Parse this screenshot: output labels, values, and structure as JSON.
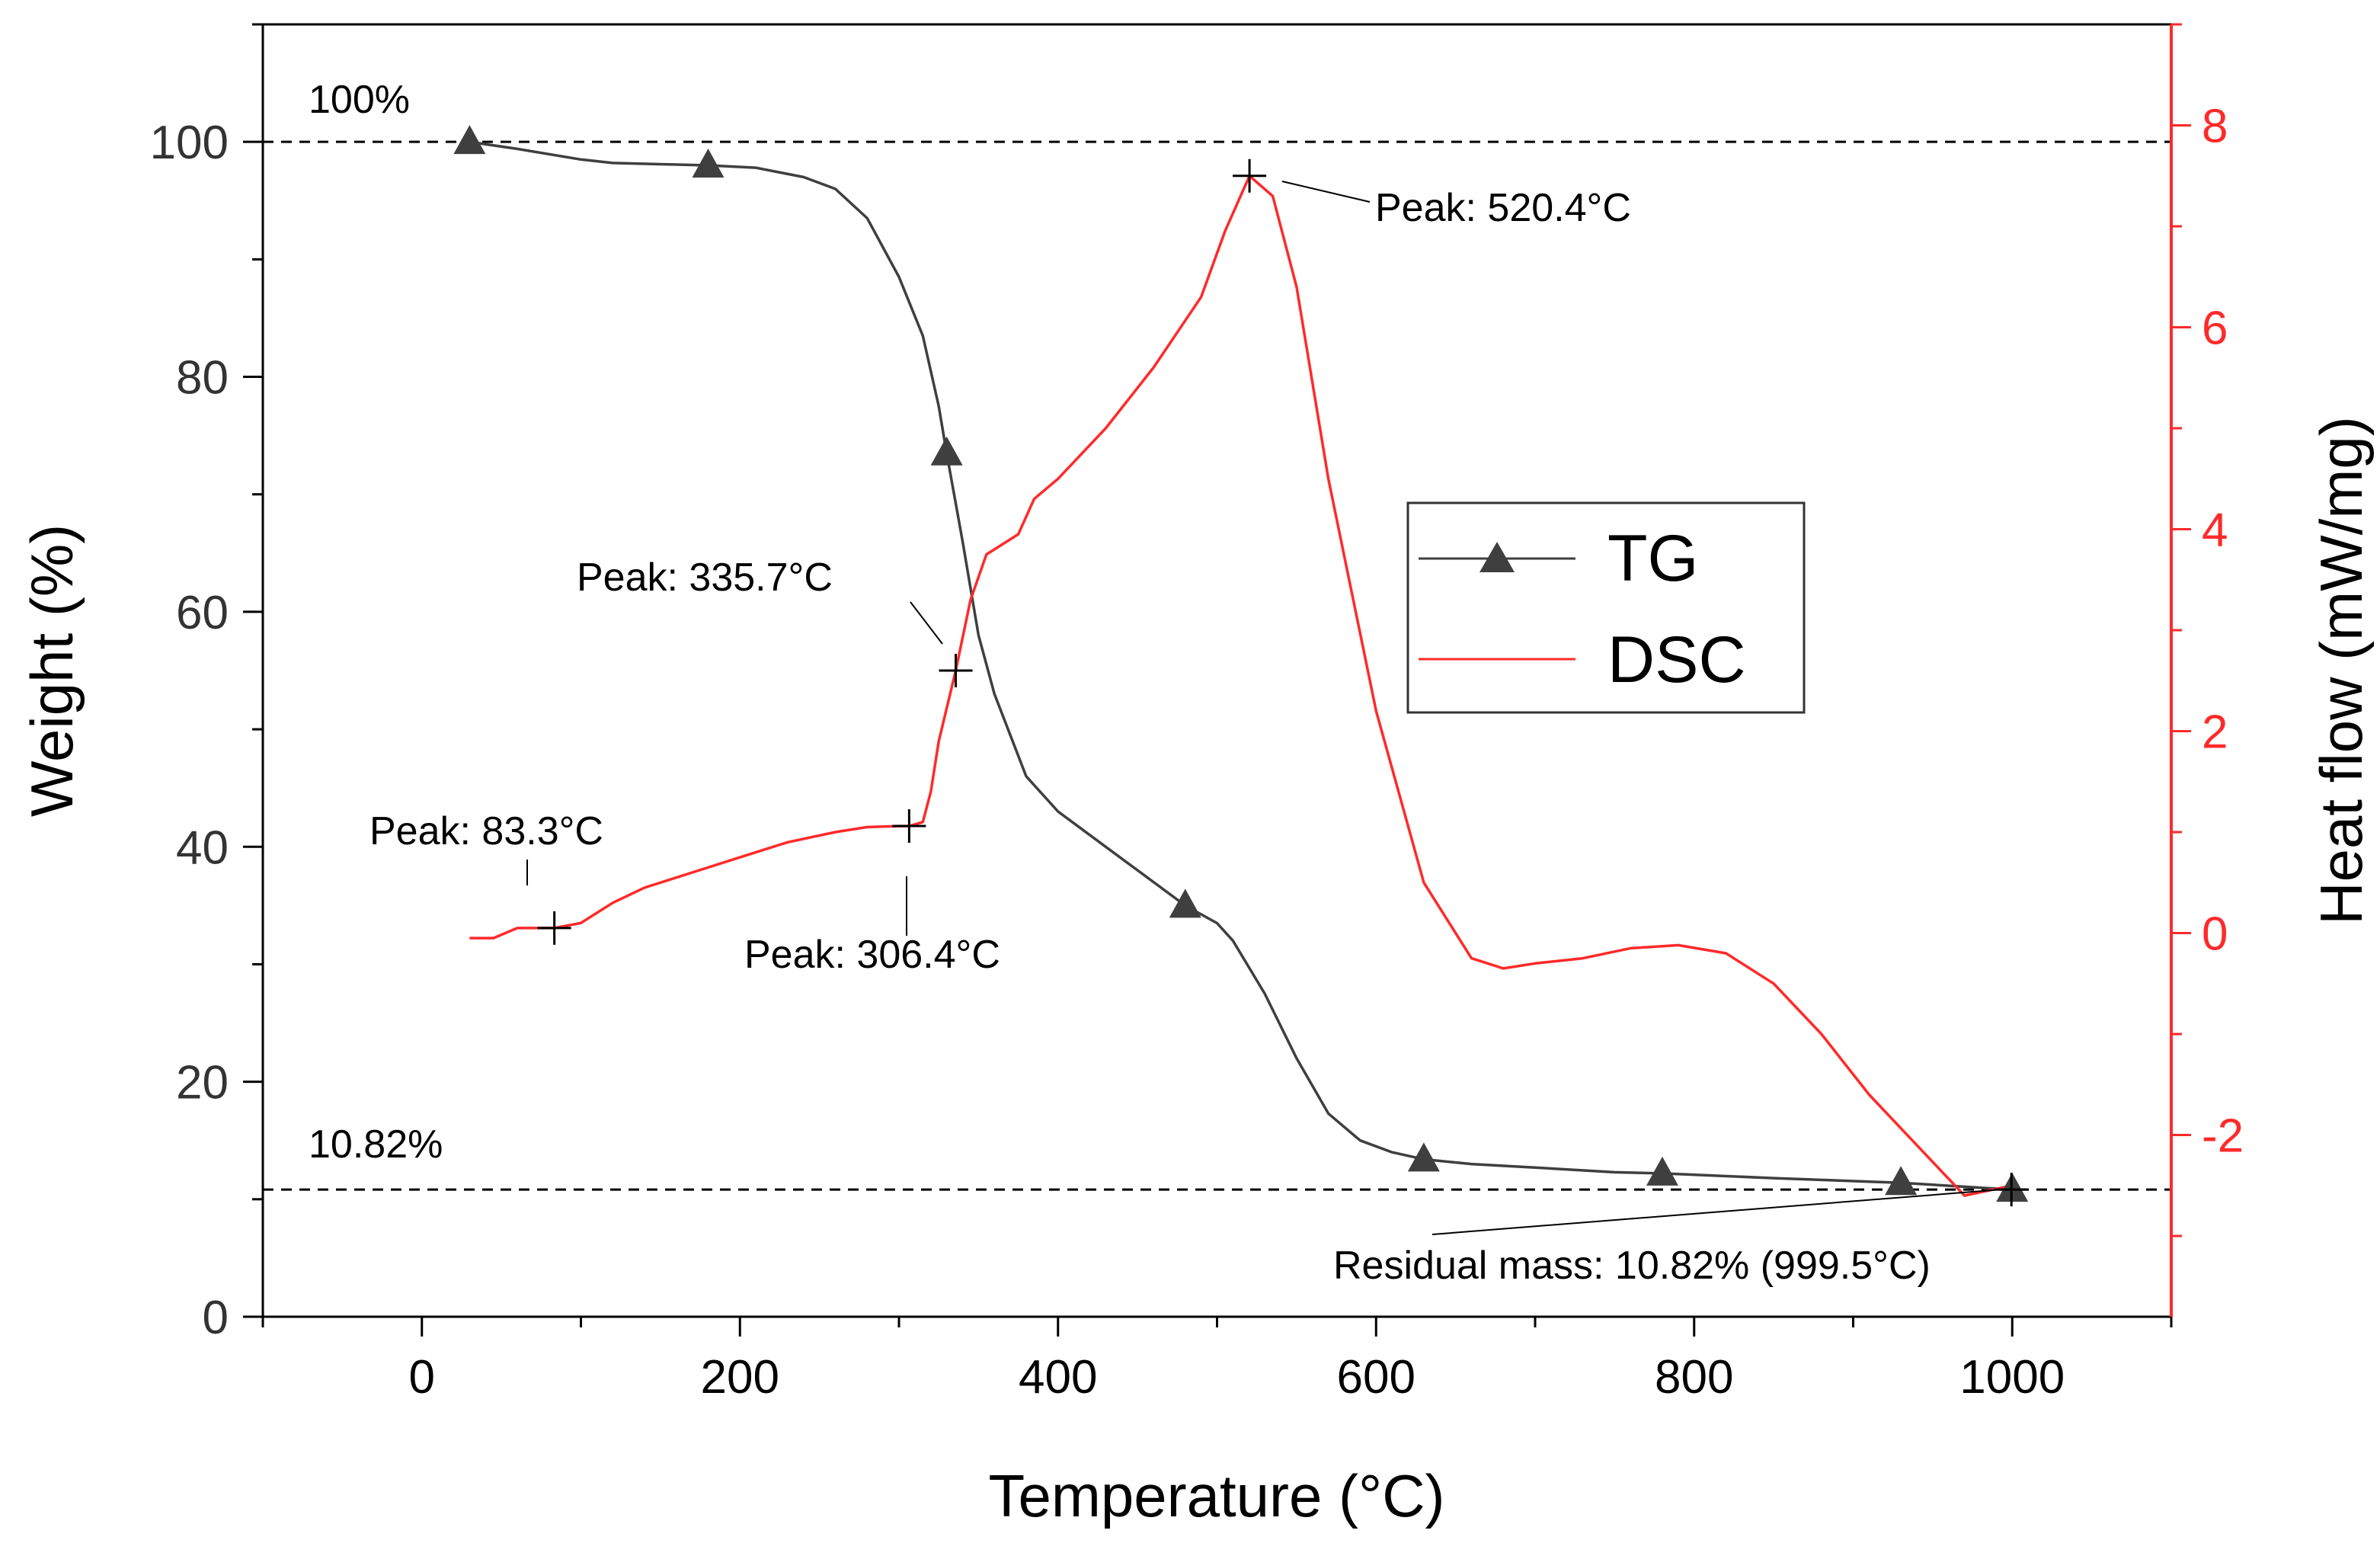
{
  "chart_data": {
    "type": "line",
    "xlabel": "Temperature (°C)",
    "ylabel_left": "Weight (%)",
    "ylabel_right": "Heat flow (mW/mg)",
    "xlim": [
      -100,
      1100
    ],
    "ylim_left": [
      0,
      110
    ],
    "ylim_right": [
      -3.8,
      9.0
    ],
    "x_ticks": [
      0,
      200,
      400,
      600,
      800,
      1000
    ],
    "y_left_ticks": [
      0,
      20,
      40,
      60,
      80,
      100
    ],
    "y_right_ticks": [
      -2,
      0,
      2,
      4,
      6,
      8
    ],
    "grid": false,
    "legend_position": "center-right",
    "colors": {
      "TG": "#3f3f3f",
      "DSC": "#ff2a2a",
      "right_axis": "#ff2a2a"
    },
    "series": [
      {
        "name": "TG",
        "axis": "left",
        "marker": "triangle",
        "x": [
          30,
          60,
          100,
          120,
          150,
          180,
          210,
          240,
          260,
          280,
          300,
          315,
          325,
          330,
          340,
          350,
          360,
          380,
          400,
          430,
          460,
          480,
          500,
          510,
          530,
          550,
          570,
          590,
          610,
          630,
          660,
          700,
          750,
          780,
          850,
          930,
          1000
        ],
        "y": [
          100,
          99.4,
          98.5,
          98.2,
          98.1,
          98.0,
          97.8,
          97.0,
          96.0,
          93.5,
          88.5,
          83.5,
          77.5,
          73.5,
          66.0,
          58.0,
          53.0,
          46.0,
          43.0,
          40.0,
          37.0,
          35.0,
          33.5,
          32.0,
          27.5,
          22.0,
          17.3,
          15.0,
          14.0,
          13.4,
          13.0,
          12.7,
          12.3,
          12.2,
          11.8,
          11.4,
          10.82
        ]
      },
      {
        "name": "DSC",
        "axis": "right",
        "x": [
          30,
          45,
          60,
          83.3,
          100,
          120,
          140,
          170,
          200,
          230,
          260,
          280,
          300,
          306.4,
          315,
          320,
          325,
          335.7,
          345,
          355,
          365,
          375,
          385,
          400,
          430,
          460,
          490,
          505,
          520.4,
          535,
          550,
          570,
          600,
          630,
          660,
          680,
          700,
          730,
          760,
          790,
          820,
          850,
          880,
          910,
          940,
          970,
          1000
        ],
        "y": [
          -0.05,
          -0.05,
          0.05,
          0.05,
          0.1,
          0.3,
          0.45,
          0.6,
          0.75,
          0.9,
          1.0,
          1.05,
          1.06,
          1.06,
          1.1,
          1.4,
          1.9,
          2.6,
          3.3,
          3.75,
          3.85,
          3.95,
          4.3,
          4.5,
          5.0,
          5.6,
          6.3,
          6.95,
          7.5,
          7.3,
          6.4,
          4.5,
          2.2,
          0.5,
          -0.25,
          -0.35,
          -0.3,
          -0.25,
          -0.15,
          -0.12,
          -0.2,
          -0.5,
          -1.0,
          -1.6,
          -2.1,
          -2.6,
          -2.5
        ]
      }
    ],
    "reference_lines": [
      {
        "axis": "left",
        "y": 100,
        "label": "100%"
      },
      {
        "axis": "left",
        "y": 10.82,
        "label": "10.82%"
      }
    ],
    "annotations": [
      {
        "text": "Peak: 83.3°C",
        "series": "DSC",
        "x": 83.3,
        "y": 0.05
      },
      {
        "text": "Peak: 306.4°C",
        "series": "DSC",
        "x": 306.4,
        "y": 1.06
      },
      {
        "text": "Peak: 335.7°C",
        "series": "DSC",
        "x": 335.7,
        "y": 2.6
      },
      {
        "text": "Peak: 520.4°C",
        "series": "DSC",
        "x": 520.4,
        "y": 7.5
      },
      {
        "text": "Residual mass: 10.82% (999.5°C)",
        "series": "TG",
        "x": 999.5,
        "y": 10.82
      }
    ]
  }
}
